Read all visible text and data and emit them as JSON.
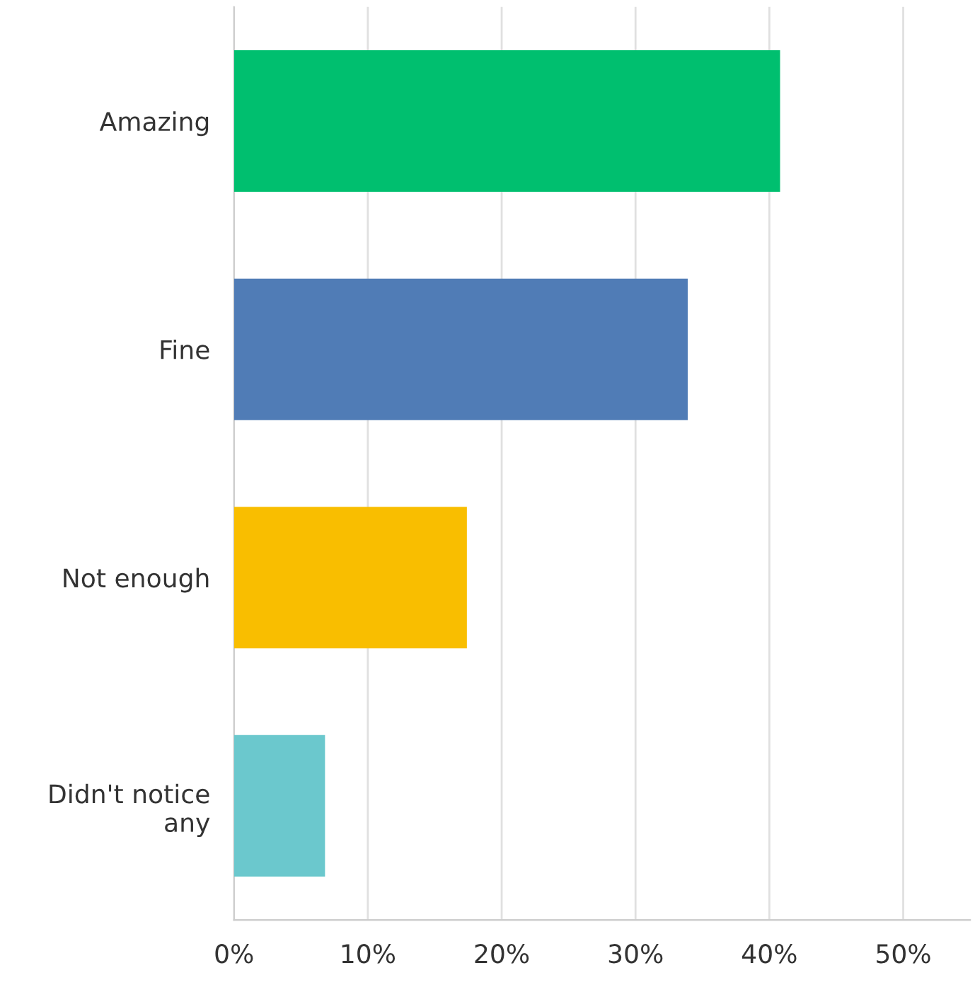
{
  "chart_data": {
    "type": "bar",
    "orientation": "horizontal",
    "categories": [
      "Amazing",
      "Fine",
      "Not enough",
      "Didn't notice\nany"
    ],
    "values": [
      40.8,
      33.9,
      17.4,
      6.8
    ],
    "colors": [
      "#00bf6f",
      "#507cb6",
      "#f9be00",
      "#6bc8cd"
    ],
    "xlim": [
      0,
      55
    ],
    "xticks": [
      {
        "value": 0,
        "label": "0%"
      },
      {
        "value": 10,
        "label": "10%"
      },
      {
        "value": 20,
        "label": "20%"
      },
      {
        "value": 30,
        "label": "30%"
      },
      {
        "value": 40,
        "label": "40%"
      },
      {
        "value": 50,
        "label": "50%"
      }
    ],
    "grid": "x",
    "legend": false
  }
}
